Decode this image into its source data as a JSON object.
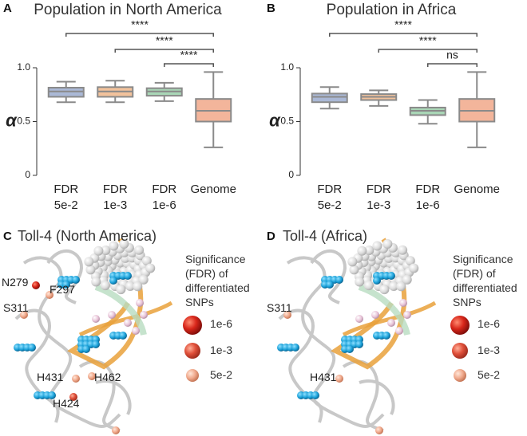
{
  "chart_data": [
    {
      "type": "box",
      "panel_label": "A",
      "title": "Population in North America",
      "ylabel": "α",
      "categories": [
        "FDR\n5e-2",
        "FDR\n1e-3",
        "FDR\n1e-6",
        "Genome"
      ],
      "colors": [
        "#aab8d6",
        "#f2c29c",
        "#a9d6b6",
        "#f3b59b"
      ],
      "boxes": [
        {
          "min": 0.68,
          "q1": 0.73,
          "median": 0.78,
          "q3": 0.815,
          "max": 0.87
        },
        {
          "min": 0.68,
          "q1": 0.73,
          "median": 0.78,
          "q3": 0.82,
          "max": 0.88
        },
        {
          "min": 0.69,
          "q1": 0.74,
          "median": 0.78,
          "q3": 0.81,
          "max": 0.86
        },
        {
          "min": 0.26,
          "q1": 0.5,
          "median": 0.6,
          "q3": 0.71,
          "max": 0.96
        }
      ],
      "ylim": [
        0,
        1
      ],
      "yticks": [
        0,
        0.5,
        {
          "value": 1,
          "label": "1.0"
        }
      ],
      "comparisons": [
        {
          "groups": [
            0,
            3
          ],
          "label": "****"
        },
        {
          "groups": [
            1,
            3
          ],
          "label": "****"
        },
        {
          "groups": [
            2,
            3
          ],
          "label": "****"
        }
      ]
    },
    {
      "type": "box",
      "panel_label": "B",
      "title": "Population in Africa",
      "ylabel": "α",
      "categories": [
        "FDR\n5e-2",
        "FDR\n1e-3",
        "FDR\n1e-6",
        "Genome"
      ],
      "colors": [
        "#aab8d6",
        "#f2c29c",
        "#a9d6b6",
        "#f3b59b"
      ],
      "boxes": [
        {
          "min": 0.62,
          "q1": 0.68,
          "median": 0.73,
          "q3": 0.76,
          "max": 0.82
        },
        {
          "min": 0.645,
          "q1": 0.7,
          "median": 0.73,
          "q3": 0.755,
          "max": 0.79
        },
        {
          "min": 0.48,
          "q1": 0.56,
          "median": 0.6,
          "q3": 0.63,
          "max": 0.7
        },
        {
          "min": 0.26,
          "q1": 0.5,
          "median": 0.6,
          "q3": 0.71,
          "max": 0.96
        }
      ],
      "ylim": [
        0,
        1
      ],
      "yticks": [
        0,
        0.5,
        {
          "value": 1,
          "label": "1.0"
        }
      ],
      "comparisons": [
        {
          "groups": [
            0,
            3
          ],
          "label": "****"
        },
        {
          "groups": [
            1,
            3
          ],
          "label": "****"
        },
        {
          "groups": [
            2,
            3
          ],
          "label": "ns"
        }
      ]
    }
  ],
  "structures": [
    {
      "panel_label": "C",
      "title": "Toll-4 (North America)",
      "legend_title": "Significance\n(FDR) of\ndifferentiated\nSNPs",
      "legend_items": [
        "1e-6",
        "1e-3",
        "5e-2"
      ],
      "residues": [
        "N279",
        "F297",
        "S311",
        "H431",
        "H462",
        "H424"
      ]
    },
    {
      "panel_label": "D",
      "title": "Toll-4 (Africa)",
      "legend_title": "Significance\n(FDR) of\ndifferentiated\nSNPs",
      "legend_items": [
        "1e-6",
        "1e-3",
        "5e-2"
      ],
      "residues": [
        "S311",
        "H431"
      ]
    }
  ]
}
